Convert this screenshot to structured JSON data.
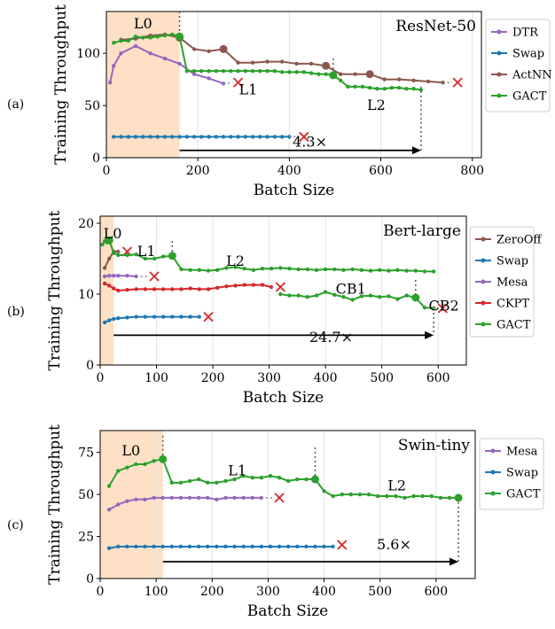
{
  "colors": {
    "DTR": "#9467bd",
    "Swap": "#1f77b4",
    "ActNN": "#8c564b",
    "GACT": "#2ca02c",
    "ZeroOff": "#8c564b",
    "Mesa": "#9467bd",
    "CKPT": "#d62728",
    "shade": "#fde0c5",
    "cross": "#d62728"
  },
  "chart_data": [
    {
      "type": "line",
      "panel_label": "(a)",
      "title": "ResNet-50",
      "xlabel": "Batch Size",
      "ylabel": "Training Throughput",
      "xlim": [
        0,
        820
      ],
      "ylim": [
        0,
        140
      ],
      "xticks": [
        0,
        200,
        400,
        600,
        800
      ],
      "yticks": [
        0,
        50,
        100
      ],
      "shade": [
        0,
        160
      ],
      "series": [
        {
          "name": "DTR",
          "color_key": "DTR",
          "x": [
            8,
            16,
            32,
            64,
            96,
            128,
            160,
            192,
            224,
            256
          ],
          "y": [
            72,
            88,
            100,
            107,
            100,
            95,
            90,
            80,
            76,
            71
          ],
          "cross": [
            288,
            72
          ]
        },
        {
          "name": "Swap",
          "color_key": "Swap",
          "x": [
            16,
            32,
            48,
            64,
            80,
            96,
            112,
            128,
            144,
            160,
            176,
            192,
            208,
            224,
            240,
            256,
            272,
            288,
            304,
            320,
            336,
            352,
            368,
            384,
            400
          ],
          "y": [
            20,
            20,
            20,
            20,
            20,
            20,
            20,
            20,
            20,
            20,
            20,
            20,
            20,
            20,
            20,
            20,
            20,
            20,
            20,
            20,
            20,
            20,
            20,
            20,
            20
          ],
          "cross": [
            432,
            20
          ]
        },
        {
          "name": "ActNN",
          "color_key": "ActNN",
          "x": [
            32,
            64,
            96,
            128,
            160,
            192,
            224,
            256,
            288,
            320,
            352,
            384,
            416,
            448,
            480,
            512,
            544,
            576,
            608,
            640,
            672,
            704,
            736
          ],
          "y": [
            113,
            114,
            117,
            118,
            115,
            104,
            102,
            104,
            91,
            91,
            92,
            92,
            90,
            90,
            88,
            80,
            80,
            80,
            75,
            75,
            74,
            73,
            72
          ],
          "cross": [
            768,
            72
          ],
          "markers": [
            [
              160,
              115
            ],
            [
              256,
              104
            ],
            [
              480,
              88
            ],
            [
              576,
              80
            ]
          ]
        },
        {
          "name": "GACT",
          "color_key": "GACT",
          "x": [
            16,
            32,
            48,
            64,
            80,
            96,
            112,
            128,
            144,
            160,
            176,
            192,
            208,
            224,
            240,
            256,
            272,
            288,
            304,
            320,
            336,
            352,
            368,
            384,
            400,
            416,
            432,
            448,
            464,
            480,
            496,
            512,
            528,
            544,
            560,
            576,
            592,
            608,
            624,
            640,
            656,
            672,
            688
          ],
          "y": [
            110,
            112,
            112,
            116,
            115,
            115,
            116,
            117,
            118,
            116,
            83,
            83,
            83,
            83,
            83,
            83,
            83,
            83,
            83,
            83,
            83,
            83,
            83,
            82,
            82,
            82,
            82,
            81,
            80,
            80,
            79,
            74,
            68,
            68,
            68,
            67,
            66,
            66,
            67,
            67,
            66,
            66,
            65
          ],
          "markers": [
            [
              160,
              116
            ],
            [
              496,
              79
            ]
          ]
        }
      ],
      "annotations": [
        {
          "text": "L0",
          "x": 80,
          "y": 128
        },
        {
          "text": "L1",
          "x": 310,
          "y": 65
        },
        {
          "text": "L2",
          "x": 590,
          "y": 50
        },
        {
          "text": "4.3×",
          "x": 445,
          "y": 15
        }
      ],
      "arrow": {
        "x1": 160,
        "x2": 688,
        "y": 7
      },
      "vlines": [
        {
          "x": 160,
          "y1": 140,
          "y2": 115
        },
        {
          "x": 496,
          "y1": 95,
          "y2": 78
        },
        {
          "x": 688,
          "y1": 68,
          "y2": 7
        }
      ],
      "legend": [
        "DTR",
        "Swap",
        "ActNN",
        "GACT"
      ]
    },
    {
      "type": "line",
      "panel_label": "(b)",
      "title": "Bert-large",
      "xlabel": "Batch Size",
      "ylabel": "Training Throughput",
      "xlim": [
        0,
        650
      ],
      "ylim": [
        0,
        21
      ],
      "xticks": [
        0,
        100,
        200,
        300,
        400,
        500,
        600
      ],
      "yticks": [
        0,
        10,
        20
      ],
      "shade": [
        0,
        24
      ],
      "series": [
        {
          "name": "ZeroOff",
          "color_key": "ZeroOff",
          "x": [
            8,
            16,
            24,
            32
          ],
          "y": [
            13.7,
            15.0,
            16.0,
            16.0
          ],
          "cross": [
            48,
            16.0
          ]
        },
        {
          "name": "Swap",
          "color_key": "Swap",
          "x": [
            8,
            16,
            24,
            32,
            48,
            64,
            80,
            96,
            112,
            128,
            144,
            160,
            176
          ],
          "y": [
            6.0,
            6.3,
            6.5,
            6.6,
            6.7,
            6.8,
            6.8,
            6.8,
            6.8,
            6.8,
            6.8,
            6.8,
            6.8
          ],
          "cross": [
            192,
            6.8
          ]
        },
        {
          "name": "Mesa",
          "color_key": "Mesa",
          "x": [
            8,
            16,
            24,
            32,
            48,
            64
          ],
          "y": [
            12.5,
            12.6,
            12.6,
            12.6,
            12.6,
            12.5
          ],
          "cross": [
            96,
            12.5
          ]
        },
        {
          "name": "CKPT",
          "color_key": "CKPT",
          "x": [
            8,
            16,
            24,
            32,
            48,
            64,
            80,
            96,
            112,
            128,
            144,
            160,
            176,
            192,
            208,
            224,
            240,
            256,
            272,
            288,
            304
          ],
          "y": [
            11.5,
            11.2,
            10.8,
            10.5,
            10.6,
            10.7,
            10.7,
            10.7,
            10.7,
            10.7,
            10.7,
            10.8,
            10.7,
            10.7,
            10.9,
            11.1,
            11.2,
            11.3,
            11.3,
            11.3,
            11.0
          ],
          "cross": [
            320,
            11.0
          ]
        },
        {
          "name": "GACT",
          "color_key": "GACT",
          "x": [
            4,
            8,
            12,
            16,
            24,
            32,
            48,
            64,
            80,
            96,
            112,
            128,
            144,
            160,
            176,
            192,
            208,
            224,
            240,
            256,
            272,
            288,
            304,
            320,
            336,
            352,
            368,
            384,
            400,
            416,
            432,
            448,
            464,
            480,
            496,
            512,
            528,
            544,
            560,
            576,
            592
          ],
          "y": [
            17.0,
            17.5,
            17.3,
            17.6,
            15.8,
            15.5,
            15.5,
            15.6,
            15.0,
            15.0,
            15.3,
            15.4,
            13.5,
            13.4,
            13.4,
            13.3,
            13.4,
            13.7,
            13.8,
            13.6,
            13.4,
            13.6,
            13.6,
            13.7,
            13.6,
            13.5,
            13.5,
            13.4,
            13.5,
            13.5,
            13.4,
            13.5,
            13.4,
            13.3,
            13.4,
            13.3,
            13.4,
            13.3,
            13.3,
            13.2,
            13.2
          ],
          "markers": [
            [
              16,
              17.6
            ],
            [
              128,
              15.4
            ]
          ]
        },
        {
          "name": "GACT2",
          "color_key": "GACT",
          "legend": false,
          "x": [
            320,
            336,
            352,
            368,
            384,
            400,
            416,
            432,
            448,
            464,
            480,
            496,
            512,
            528,
            544,
            560,
            576,
            592
          ],
          "y": [
            10.0,
            9.8,
            9.8,
            9.6,
            9.8,
            10.3,
            9.9,
            9.6,
            9.2,
            9.7,
            9.8,
            9.6,
            9.7,
            9.3,
            9.8,
            9.5,
            8.1,
            8.0
          ],
          "markers": [
            [
              560,
              9.5
            ]
          ],
          "cross": [
            608,
            8.0
          ]
        }
      ],
      "annotations": [
        {
          "text": "L0",
          "x": 22,
          "y": 18.5
        },
        {
          "text": "L1",
          "x": 82,
          "y": 16.0
        },
        {
          "text": "L2",
          "x": 240,
          "y": 14.6
        },
        {
          "text": "CB1",
          "x": 445,
          "y": 10.7
        },
        {
          "text": "CB2",
          "x": 610,
          "y": 8.3
        },
        {
          "text": "24.7×",
          "x": 410,
          "y": 3.9
        }
      ],
      "arrow": {
        "x1": 24,
        "x2": 592,
        "y": 4.2
      },
      "vlines": [
        {
          "x": 128,
          "y1": 17.5,
          "y2": 15.3
        },
        {
          "x": 560,
          "y1": 12.0,
          "y2": 9.5
        },
        {
          "x": 592,
          "y1": 8.0,
          "y2": 4.2
        }
      ],
      "legend": [
        "ZeroOff",
        "Swap",
        "Mesa",
        "CKPT",
        "GACT"
      ]
    },
    {
      "type": "line",
      "panel_label": "(c)",
      "title": "Swin-tiny",
      "xlabel": "Batch Size",
      "ylabel": "Training Throughput",
      "xlim": [
        0,
        670
      ],
      "ylim": [
        0,
        88
      ],
      "xticks": [
        0,
        100,
        200,
        300,
        400,
        500,
        600
      ],
      "yticks": [
        0,
        25,
        50,
        75
      ],
      "shade": [
        0,
        112
      ],
      "series": [
        {
          "name": "Mesa",
          "color_key": "Mesa",
          "x": [
            16,
            32,
            48,
            64,
            80,
            96,
            112,
            128,
            144,
            160,
            176,
            192,
            208,
            224,
            240,
            256,
            272,
            288
          ],
          "y": [
            41,
            44,
            46,
            47,
            47,
            48,
            48,
            48,
            48,
            48,
            48,
            48,
            47,
            48,
            48,
            48,
            48,
            48
          ],
          "cross": [
            320,
            48
          ]
        },
        {
          "name": "Swap",
          "color_key": "Swap",
          "x": [
            16,
            32,
            48,
            64,
            80,
            96,
            112,
            128,
            144,
            160,
            176,
            192,
            208,
            224,
            240,
            256,
            272,
            288,
            304,
            320,
            336,
            352,
            368,
            384,
            400,
            416
          ],
          "y": [
            18,
            19,
            19,
            19,
            19,
            19,
            19,
            19,
            19,
            19,
            19,
            19,
            19,
            19,
            19,
            19,
            19,
            19,
            19,
            19,
            19,
            19,
            19,
            19,
            19,
            19
          ],
          "cross": [
            432,
            20
          ]
        },
        {
          "name": "GACT",
          "color_key": "GACT",
          "x": [
            16,
            32,
            48,
            64,
            80,
            96,
            112,
            128,
            144,
            160,
            176,
            192,
            208,
            224,
            240,
            256,
            272,
            288,
            304,
            320,
            336,
            352,
            368,
            384,
            400,
            416,
            432,
            448,
            464,
            480,
            496,
            512,
            528,
            544,
            560,
            576,
            592,
            608,
            624,
            640
          ],
          "y": [
            55,
            64,
            66,
            68,
            68,
            70,
            71,
            57,
            57,
            58,
            59,
            57,
            57,
            58,
            59,
            61,
            60,
            60,
            61,
            60,
            58,
            59,
            59,
            59,
            52,
            49,
            50,
            50,
            50,
            50,
            49,
            49,
            49,
            48,
            49,
            49,
            49,
            48,
            48,
            48
          ],
          "markers": [
            [
              112,
              71
            ],
            [
              384,
              59
            ],
            [
              640,
              48
            ]
          ]
        }
      ],
      "annotations": [
        {
          "text": "L0",
          "x": 55,
          "y": 76
        },
        {
          "text": "L1",
          "x": 245,
          "y": 64
        },
        {
          "text": "L2",
          "x": 530,
          "y": 55
        },
        {
          "text": "5.6×",
          "x": 525,
          "y": 20
        }
      ],
      "arrow": {
        "x1": 112,
        "x2": 640,
        "y": 10
      },
      "vlines": [
        {
          "x": 112,
          "y1": 85,
          "y2": 70
        },
        {
          "x": 384,
          "y1": 78,
          "y2": 59
        },
        {
          "x": 640,
          "y1": 48,
          "y2": 10
        }
      ],
      "legend": [
        "Mesa",
        "Swap",
        "GACT"
      ]
    }
  ]
}
